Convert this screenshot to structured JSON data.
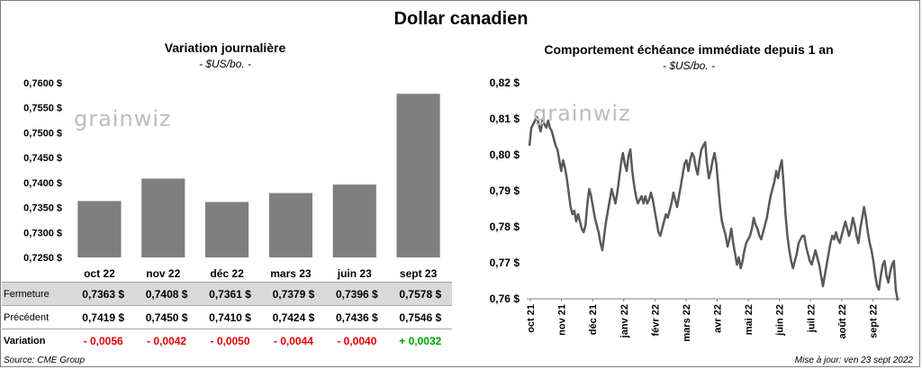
{
  "title": "Dollar canadien",
  "left_chart": {
    "title": "Variation  journalière",
    "unit": "- $US/bo. -",
    "watermark": "grainwiz"
  },
  "right_chart": {
    "title": "Comportement échéance immédiate depuis 1 an",
    "unit": "- $US/bo. -",
    "watermark": "grainwiz"
  },
  "table": {
    "rows": [
      {
        "label": "Fermeture",
        "values": [
          "0,7363  $",
          "0,7408  $",
          "0,7361  $",
          "0,7379  $",
          "0,7396  $",
          "0,7578  $"
        ]
      },
      {
        "label": "Précédent",
        "values": [
          "0,7419  $",
          "0,7450  $",
          "0,7410  $",
          "0,7424  $",
          "0,7436  $",
          "0,7546  $"
        ]
      },
      {
        "label": "Variation",
        "values": [
          "- 0,0056",
          "- 0,0042",
          "- 0,0050",
          "- 0,0044",
          "- 0,0040",
          "+ 0,0032"
        ]
      }
    ]
  },
  "colors": {
    "bar": "#7f7f7f",
    "line": "#595959",
    "negative": "#e00000",
    "positive": "#00a000",
    "highlight": "#d9d9d9"
  },
  "footer": {
    "source": "Source: CME Group",
    "updated": "Mise à jour: ven 23 sept 2022"
  },
  "chart_data": [
    {
      "type": "bar",
      "title": "Variation  journalière",
      "categories": [
        "oct 22",
        "nov 22",
        "déc 22",
        "mars 23",
        "juin 23",
        "sept 23"
      ],
      "values": [
        0.7363,
        0.7408,
        0.7361,
        0.7379,
        0.7396,
        0.7578
      ],
      "ylim": [
        0.725,
        0.76
      ],
      "yticks": [
        "0,7250 $",
        "0,7300 $",
        "0,7350 $",
        "0,7400 $",
        "0,7450 $",
        "0,7500 $",
        "0,7550 $",
        "0,7600 $"
      ],
      "ytick_values": [
        0.725,
        0.73,
        0.735,
        0.74,
        0.745,
        0.75,
        0.755,
        0.76
      ]
    },
    {
      "type": "line",
      "title": "Comportement échéance immédiate depuis 1 an",
      "ylim": [
        0.76,
        0.82
      ],
      "yticks": [
        "0,76 $",
        "0,77 $",
        "0,78 $",
        "0,79 $",
        "0,80 $",
        "0,81 $",
        "0,82 $"
      ],
      "ytick_values": [
        0.76,
        0.77,
        0.78,
        0.79,
        0.8,
        0.81,
        0.82
      ],
      "xticks": [
        "oct 21",
        "nov 21",
        "déc 21",
        "janv 22",
        "févr 22",
        "mars 22",
        "avr 22",
        "mai 22",
        "juin 22",
        "juil 22",
        "août 22",
        "sept 22"
      ],
      "values": [
        0.8025,
        0.8075,
        0.8085,
        0.8095,
        0.8105,
        0.8085,
        0.8065,
        0.8095,
        0.8085,
        0.8075,
        0.8095,
        0.8075,
        0.8065,
        0.8045,
        0.8025,
        0.8015,
        0.7985,
        0.7955,
        0.7985,
        0.7965,
        0.7935,
        0.7895,
        0.7855,
        0.7835,
        0.7845,
        0.7815,
        0.7835,
        0.7815,
        0.7795,
        0.7785,
        0.7805,
        0.7865,
        0.7905,
        0.7885,
        0.7855,
        0.7825,
        0.7805,
        0.7785,
        0.7755,
        0.7735,
        0.7775,
        0.7815,
        0.7845,
        0.7875,
        0.7905,
        0.7885,
        0.7865,
        0.7895,
        0.7935,
        0.7975,
        0.8005,
        0.7975,
        0.7955,
        0.7995,
        0.8015,
        0.7955,
        0.7915,
        0.7885,
        0.7865,
        0.7875,
        0.7885,
        0.7865,
        0.7885,
        0.7865,
        0.7875,
        0.7895,
        0.7875,
        0.7845,
        0.7815,
        0.7785,
        0.7775,
        0.7795,
        0.7815,
        0.7835,
        0.7825,
        0.7845,
        0.7865,
        0.7895,
        0.7875,
        0.7855,
        0.7885,
        0.7915,
        0.7945,
        0.7975,
        0.7985,
        0.7955,
        0.7985,
        0.8005,
        0.7995,
        0.7965,
        0.7945,
        0.7985,
        0.8015,
        0.8025,
        0.8035,
        0.7975,
        0.7935,
        0.7955,
        0.7985,
        0.8005,
        0.7975,
        0.7915,
        0.7855,
        0.7815,
        0.7795,
        0.7775,
        0.7745,
        0.7765,
        0.7795,
        0.7755,
        0.7725,
        0.7695,
        0.7715,
        0.7685,
        0.7705,
        0.7735,
        0.7755,
        0.7765,
        0.7775,
        0.7795,
        0.7825,
        0.7805,
        0.7795,
        0.7775,
        0.7765,
        0.7785,
        0.7805,
        0.7825,
        0.7855,
        0.7885,
        0.7905,
        0.7925,
        0.7955,
        0.7935,
        0.7965,
        0.7985,
        0.7915,
        0.7835,
        0.7775,
        0.7735,
        0.7705,
        0.7685,
        0.7705,
        0.7725,
        0.7755,
        0.7765,
        0.7775,
        0.7775,
        0.7745,
        0.7725,
        0.7705,
        0.7695,
        0.7715,
        0.7735,
        0.7715,
        0.7695,
        0.7665,
        0.7635,
        0.7665,
        0.7695,
        0.7725,
        0.7755,
        0.7775,
        0.7765,
        0.7785,
        0.7765,
        0.7755,
        0.7775,
        0.7795,
        0.7815,
        0.7795,
        0.7775,
        0.7795,
        0.7825,
        0.7805,
        0.7775,
        0.7755,
        0.7795,
        0.7825,
        0.7855,
        0.7825,
        0.7785,
        0.7755,
        0.7735,
        0.7705,
        0.7665,
        0.7635,
        0.7625,
        0.7665,
        0.7695,
        0.7705,
        0.7665,
        0.7645,
        0.7675,
        0.7695,
        0.7705,
        0.7625,
        0.7595
      ]
    }
  ]
}
